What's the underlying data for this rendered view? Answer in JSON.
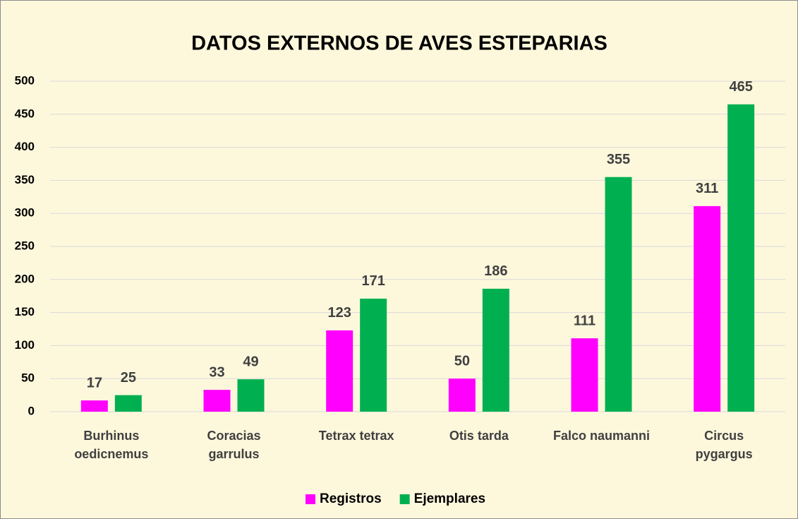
{
  "chart_data": {
    "type": "bar",
    "title": "DATOS EXTERNOS DE AVES ESTEPARIAS",
    "categories": [
      "Burhinus oedicnemus",
      "Coracias garrulus",
      "Tetrax tetrax",
      "Otis tarda",
      "Falco naumanni",
      "Circus pygargus"
    ],
    "series": [
      {
        "name": "Registros",
        "color": "#ff00ff",
        "values": [
          17,
          33,
          123,
          50,
          111,
          311
        ]
      },
      {
        "name": "Ejemplares",
        "color": "#00b050",
        "values": [
          25,
          49,
          171,
          186,
          355,
          465
        ]
      }
    ],
    "ylim": [
      0,
      500
    ],
    "yticks": [
      0,
      50,
      100,
      150,
      200,
      250,
      300,
      350,
      400,
      450,
      500
    ],
    "grid": true,
    "legend": "bottom"
  }
}
